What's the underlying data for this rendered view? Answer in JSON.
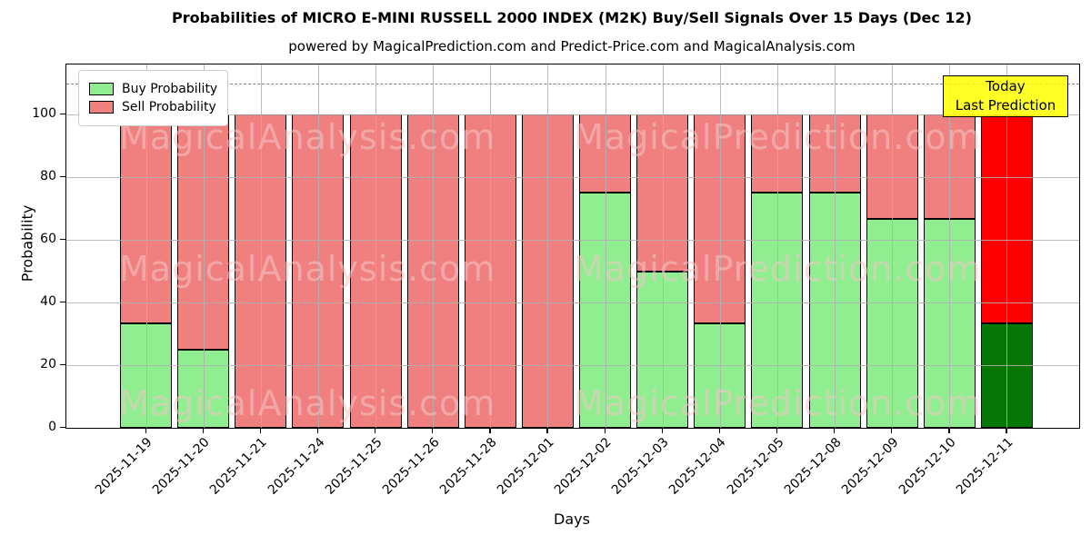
{
  "figure": {
    "title": "Probabilities of MICRO E-MINI RUSSELL 2000 INDEX (M2K) Buy/Sell Signals Over 15 Days (Dec 12)",
    "subtitle": "powered by MagicalPrediction.com and Predict-Price.com and MagicalAnalysis.com"
  },
  "chart_data": {
    "type": "bar",
    "stacked": true,
    "title": "Probabilities of MICRO E-MINI RUSSELL 2000 INDEX (M2K) Buy/Sell Signals Over 15 Days (Dec 12)",
    "subtitle": "powered by MagicalPrediction.com and Predict-Price.com and MagicalAnalysis.com",
    "xlabel": "Days",
    "ylabel": "Probability",
    "ylim": [
      0,
      116
    ],
    "yticks": [
      0,
      20,
      40,
      60,
      80,
      100
    ],
    "grid": true,
    "dashed_line_y": 110,
    "legend_position": "upper left",
    "categories": [
      "2025-11-19",
      "2025-11-20",
      "2025-11-21",
      "2025-11-24",
      "2025-11-25",
      "2025-11-26",
      "2025-11-28",
      "2025-12-01",
      "2025-12-02",
      "2025-12-03",
      "2025-12-04",
      "2025-12-05",
      "2025-12-08",
      "2025-12-09",
      "2025-12-10",
      "2025-12-11"
    ],
    "series": [
      {
        "name": "Buy Probability",
        "color": "#90ee90",
        "values": [
          33.33,
          25,
          0,
          0,
          0,
          0,
          0,
          0,
          75,
          50,
          33.33,
          75,
          75,
          66.67,
          66.67,
          33.33
        ]
      },
      {
        "name": "Sell Probability",
        "color": "#f08080",
        "values": [
          66.67,
          75,
          100,
          100,
          100,
          100,
          100,
          100,
          25,
          50,
          66.67,
          25,
          25,
          33.33,
          33.33,
          66.67
        ]
      }
    ],
    "today_bar": {
      "index": 15,
      "buy_color": "#067606",
      "sell_color": "#ff0000"
    }
  },
  "annotation": {
    "line1": "Today",
    "line2": "Last Prediction",
    "bg_color": "#ffff00"
  },
  "watermarks": {
    "left": "MagicalAnalysis.com",
    "right": "MagicalPrediction.com"
  },
  "colors": {
    "bar_edge": "#000000",
    "grid": "#b0b0b0",
    "dashed_line": "#7f7f7f",
    "legend_border": "#cccccc",
    "annotation_border": "#000000"
  }
}
